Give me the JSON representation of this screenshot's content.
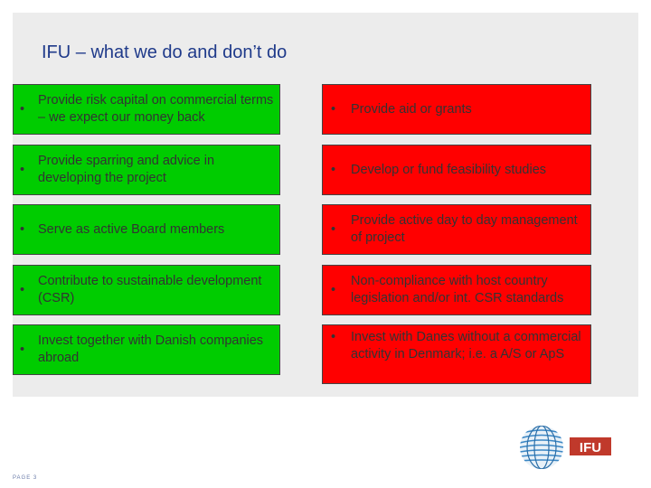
{
  "title": "IFU – what we do and don’t do",
  "do_items": [
    "Provide risk capital on commercial terms – we expect our money back",
    "Provide sparring and advice in developing the project",
    "Serve as active Board members",
    "Contribute to sustainable development (CSR)",
    "Invest together with Danish companies abroad"
  ],
  "dont_items": [
    "Provide aid or grants",
    "Develop or fund feasibility studies",
    "Provide active day to day management of project",
    "Non-compliance with host country legislation and/or int. CSR standards",
    "Invest with Danes without a commercial activity in Denmark; i.e. a A/S or ApS"
  ],
  "bullet": "•",
  "page_label": "PAGE 3",
  "logo_text": "IFU",
  "colors": {
    "do": "#00cc00",
    "dont": "#ff0000",
    "title": "#1f3a8a"
  }
}
